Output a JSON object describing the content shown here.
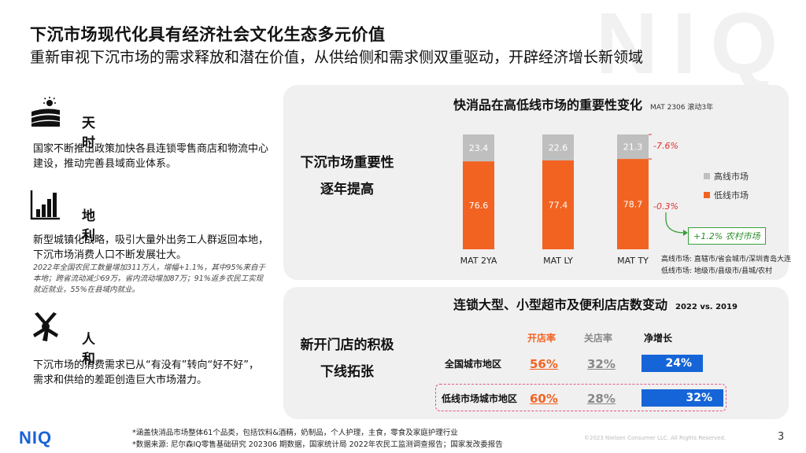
{
  "header": {
    "title": "下沉市场现代化具有经济社会文化生态多元价值",
    "subtitle": "重新审视下沉市场的需求释放和潜在价值，从供给侧和需求侧双重驱动，开辟经济增长新领域",
    "watermark": "NIQ"
  },
  "sections": [
    {
      "icon": "farmland-sun-icon",
      "title": "天时",
      "text": "国家不断推出政策加快各县连锁零售商店和物流中心建设，推动完善县域商业体系。",
      "note": ""
    },
    {
      "icon": "bar-growth-icon",
      "title": "地利",
      "text": "新型城镇化战略，吸引大量外出务工人群返回本地，下沉市场消费人口不断发展壮大。",
      "note": "2022年全国农民工数量增加311万人，增幅+1.1%，其中95%来自于本地；跨省流动减少69万，省内流动增加87万；91%返乡农民工实现就近就业，55%在县域内就业。"
    },
    {
      "icon": "hands-together-icon",
      "title": "人和",
      "text": "下沉市场的消费需求已从“有没有”转向“好不好”，需求和供给的差距创造巨大市场潜力。",
      "note": ""
    }
  ],
  "panel1": {
    "left_line1": "下沉市场重要性",
    "left_line2": "逐年提高",
    "title": "快消品在高低线市场的重要性变化",
    "title_note": "MAT 2306 滚动3年",
    "legend": [
      {
        "label": "高线市场",
        "color": "#bfbfbf"
      },
      {
        "label": "低线市场",
        "color": "#f26322"
      }
    ],
    "changes": {
      "high": "-7.6%",
      "low": "-0.3%"
    },
    "rural_label": "+1.2% 农村市场",
    "def_high": "高线市场: 直辖市/省会城市/深圳青岛大连",
    "def_low": "低线市场: 地级市/县级市/县城/农村"
  },
  "chart_data": {
    "type": "bar",
    "stacked": true,
    "categories": [
      "MAT 2YA",
      "MAT LY",
      "MAT TY"
    ],
    "series": [
      {
        "name": "低线市场",
        "values": [
          76.6,
          77.4,
          78.7
        ],
        "color": "#f26322"
      },
      {
        "name": "高线市场",
        "values": [
          23.4,
          22.6,
          21.3
        ],
        "color": "#bfbfbf"
      }
    ],
    "ylim": [
      0,
      100
    ],
    "title": "快消品在高低线市场的重要性变化",
    "legend_position": "right"
  },
  "panel2": {
    "left_line1": "新开门店的积极",
    "left_line2": "下线拓张",
    "title": "连锁大型、小型超市及便利店店数变动",
    "title_note": "2022 vs. 2019",
    "columns": {
      "open": "开店率",
      "close": "关店率",
      "net": "净增长"
    },
    "rows": [
      {
        "label": "全国城市地区",
        "open": "56%",
        "close": "32%",
        "net": "24%",
        "net_value": 24
      },
      {
        "label": "低线市场城市地区",
        "open": "60%",
        "close": "28%",
        "net": "32%",
        "net_value": 32
      }
    ]
  },
  "footer": {
    "logo": "NIQ",
    "note1": "*涵盖快消品市场整体61个品类，包括饮料&酒精，奶制品，个人护理，主食，零食及家庭护理行业",
    "note2": "*数据来源: 尼尔森IQ零售基础研究 202306 期数据，国家统计局 2022年农民工监测调查报告；国家发改委报告",
    "copyright": "©2023 Nielsen Consumer LLC. All Rights Reserved.",
    "page": "3"
  }
}
